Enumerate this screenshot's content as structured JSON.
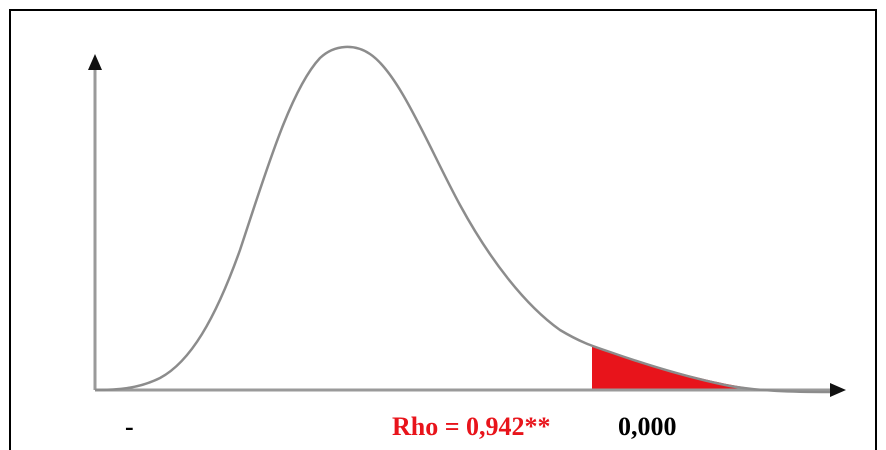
{
  "labels": {
    "left_marker": "-",
    "rho_value": "Rho = 0,942**",
    "p_value": "0,000"
  },
  "colors": {
    "curve": "#8c8c8c",
    "axes": "#9a9a9a",
    "shaded_region": "#e8141b",
    "rho_text": "#e8141b",
    "frame": "#000000"
  }
}
